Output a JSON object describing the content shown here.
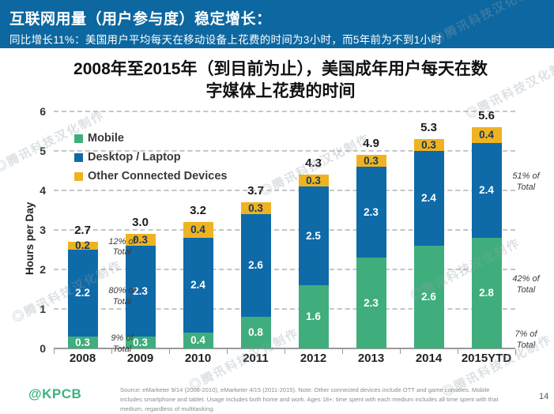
{
  "banner": {
    "title": "互联网用量（用户参与度）稳定增长：",
    "subtitle": "同比增长11%：美国用户平均每天在移动设备上花费的时间为3小时，而5年前为不到1小时"
  },
  "chart_title": "2008年至2015年（到目前为止），美国成年用户每天在数字媒体上花费的时间",
  "chart_data": {
    "type": "bar",
    "stacked": true,
    "title": "2008年至2015年（到目前为止），美国成年用户每天在数字媒体上花费的时间",
    "categories": [
      "2008",
      "2009",
      "2010",
      "2011",
      "2012",
      "2013",
      "2014",
      "2015YTD"
    ],
    "series": [
      {
        "name": "Mobile",
        "color": "#3fae7c",
        "label_color": "#ffffff",
        "values": [
          0.3,
          0.3,
          0.4,
          0.8,
          1.6,
          2.3,
          2.6,
          2.8
        ]
      },
      {
        "name": "Desktop / Laptop",
        "color": "#0f6aa8",
        "label_color": "#ffffff",
        "values": [
          2.2,
          2.3,
          2.4,
          2.6,
          2.5,
          2.3,
          2.4,
          2.4
        ]
      },
      {
        "name": "Other Connected Devices",
        "color": "#efb321",
        "label_color": "#16395f",
        "values": [
          0.2,
          0.3,
          0.4,
          0.3,
          0.3,
          0.3,
          0.3,
          0.4
        ]
      }
    ],
    "totals": [
      2.7,
      3.0,
      3.2,
      3.7,
      4.3,
      4.9,
      5.3,
      5.6
    ],
    "xlabel": "",
    "ylabel": "Hours per Day",
    "ylim": [
      0,
      6
    ],
    "yticks": [
      0,
      1,
      2,
      3,
      4,
      5,
      6
    ],
    "grid": "horizontal-dashed",
    "legend_position": "top-left",
    "annotations": [
      {
        "anchor_index": 0,
        "items": [
          {
            "text": "12% of Total",
            "series_index": 0
          },
          {
            "text": "80% of Total",
            "series_index": 1
          },
          {
            "text": "9% of Total",
            "series_index": 2
          }
        ]
      },
      {
        "anchor_index": 7,
        "items": [
          {
            "text": "51% of Total",
            "series_index": 0
          },
          {
            "text": "42% of Total",
            "series_index": 1
          },
          {
            "text": "7% of Total",
            "series_index": 2
          }
        ]
      }
    ]
  },
  "footer": {
    "logo": "@KPCB",
    "source": "Source: eMarketer 9/14 (2008-2010), eMarketer 4/15 (2011-2015). Note: Other connected devices include OTT and game consoles. Mobile includes smartphone and tablet. Usage includes both home and work. Ages 18+: time spent with each medium includes all time spent with that medium, regardless of multitasking.",
    "page_number": "14"
  },
  "watermark": {
    "text": "◎腾讯科技汉化制作"
  }
}
